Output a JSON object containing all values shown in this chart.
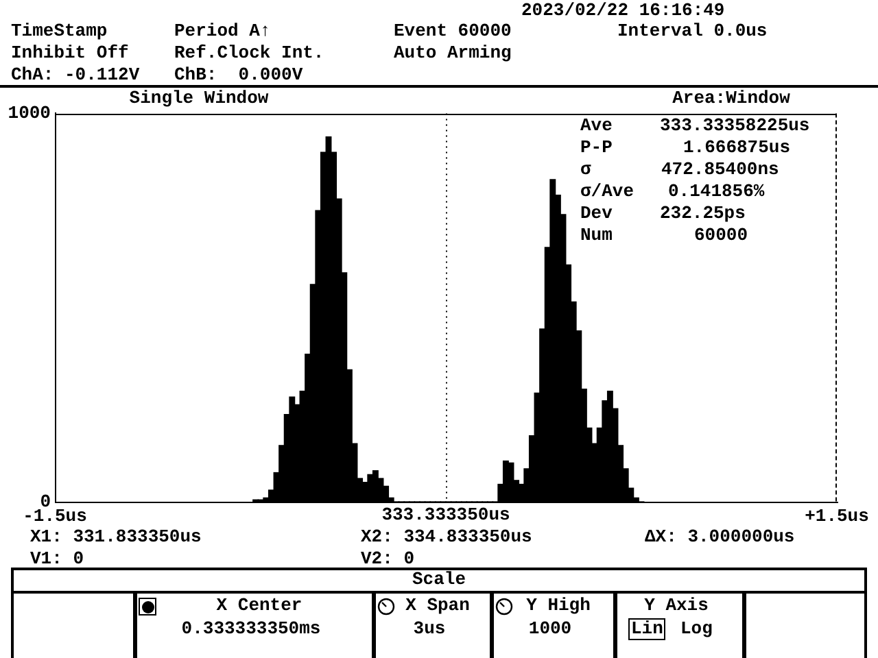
{
  "chart_data": {
    "type": "histogram",
    "title": "Single Window",
    "bins": [
      -0.74,
      -0.72,
      -0.7,
      -0.68,
      -0.66,
      -0.64,
      -0.62,
      -0.6,
      -0.58,
      -0.56,
      -0.54,
      -0.52,
      -0.5,
      -0.48,
      -0.46,
      -0.44,
      -0.42,
      -0.4,
      -0.38,
      -0.36,
      -0.34,
      -0.32,
      -0.3,
      -0.28,
      -0.26,
      -0.24,
      -0.22,
      -0.2,
      -0.18,
      -0.16,
      -0.14,
      -0.12,
      -0.1,
      -0.08,
      -0.06,
      -0.04,
      -0.02,
      0,
      0.02,
      0.04,
      0.06,
      0.08,
      0.1,
      0.12,
      0.14,
      0.16,
      0.18,
      0.2,
      0.22,
      0.24,
      0.26,
      0.28,
      0.3,
      0.32,
      0.34,
      0.36,
      0.38,
      0.4,
      0.42,
      0.44,
      0.46,
      0.48,
      0.5,
      0.52,
      0.54,
      0.56,
      0.58,
      0.6,
      0.62,
      0.64,
      0.66,
      0.68,
      0.7,
      0.72,
      0.74,
      0.76
    ],
    "values": [
      5,
      5,
      10,
      30,
      75,
      145,
      225,
      270,
      250,
      285,
      380,
      560,
      750,
      900,
      940,
      900,
      780,
      590,
      340,
      150,
      60,
      50,
      70,
      80,
      60,
      40,
      10,
      0,
      0,
      0,
      0,
      0,
      0,
      0,
      0,
      0,
      0,
      0,
      0,
      0,
      0,
      0,
      0,
      0,
      0,
      0,
      0,
      45,
      105,
      100,
      55,
      45,
      85,
      170,
      280,
      445,
      655,
      830,
      790,
      740,
      610,
      515,
      440,
      290,
      190,
      150,
      190,
      260,
      285,
      240,
      145,
      85,
      35,
      10,
      0
    ],
    "color": "#000000",
    "xlim": [
      -1.5,
      1.5
    ],
    "xticks": [
      {
        "value": -1.5,
        "label": "-1.5us"
      },
      {
        "value": 1.5,
        "label": "+1.5us"
      }
    ],
    "ylim": [
      0,
      1000
    ],
    "yticks": [
      0,
      1000
    ],
    "ref_lines": [
      {
        "axis": "x",
        "value": 0,
        "label": "333.333350us",
        "color": "#000000",
        "line_style": "dotted"
      }
    ],
    "annotations": [
      "2023/02/22 16:16:49",
      "TimeStamp",
      "Period A↑",
      "Event 60000",
      "Interval 0.0us",
      "Inhibit Off",
      "Ref.Clock Int.",
      "Auto Arming",
      "ChA: -0.112V",
      "ChB:  0.000V",
      "Area:Window",
      "Ave",
      "333.33358225us",
      "P-P",
      "1.666875us",
      "σ",
      "472.85400ns",
      "σ/Ave",
      "0.141856%",
      "Dev",
      "232.25ps",
      "Num",
      "60000",
      "X1: 331.833350us",
      "X2: 334.833350us",
      "ΔX: 3.000000us",
      "V1: 0",
      "V2: 0",
      "Scale",
      "X Center",
      "0.333333350ms",
      "X Span",
      "3us",
      "Y High",
      "1000",
      "Y Axis",
      "Lin",
      "Log"
    ]
  }
}
